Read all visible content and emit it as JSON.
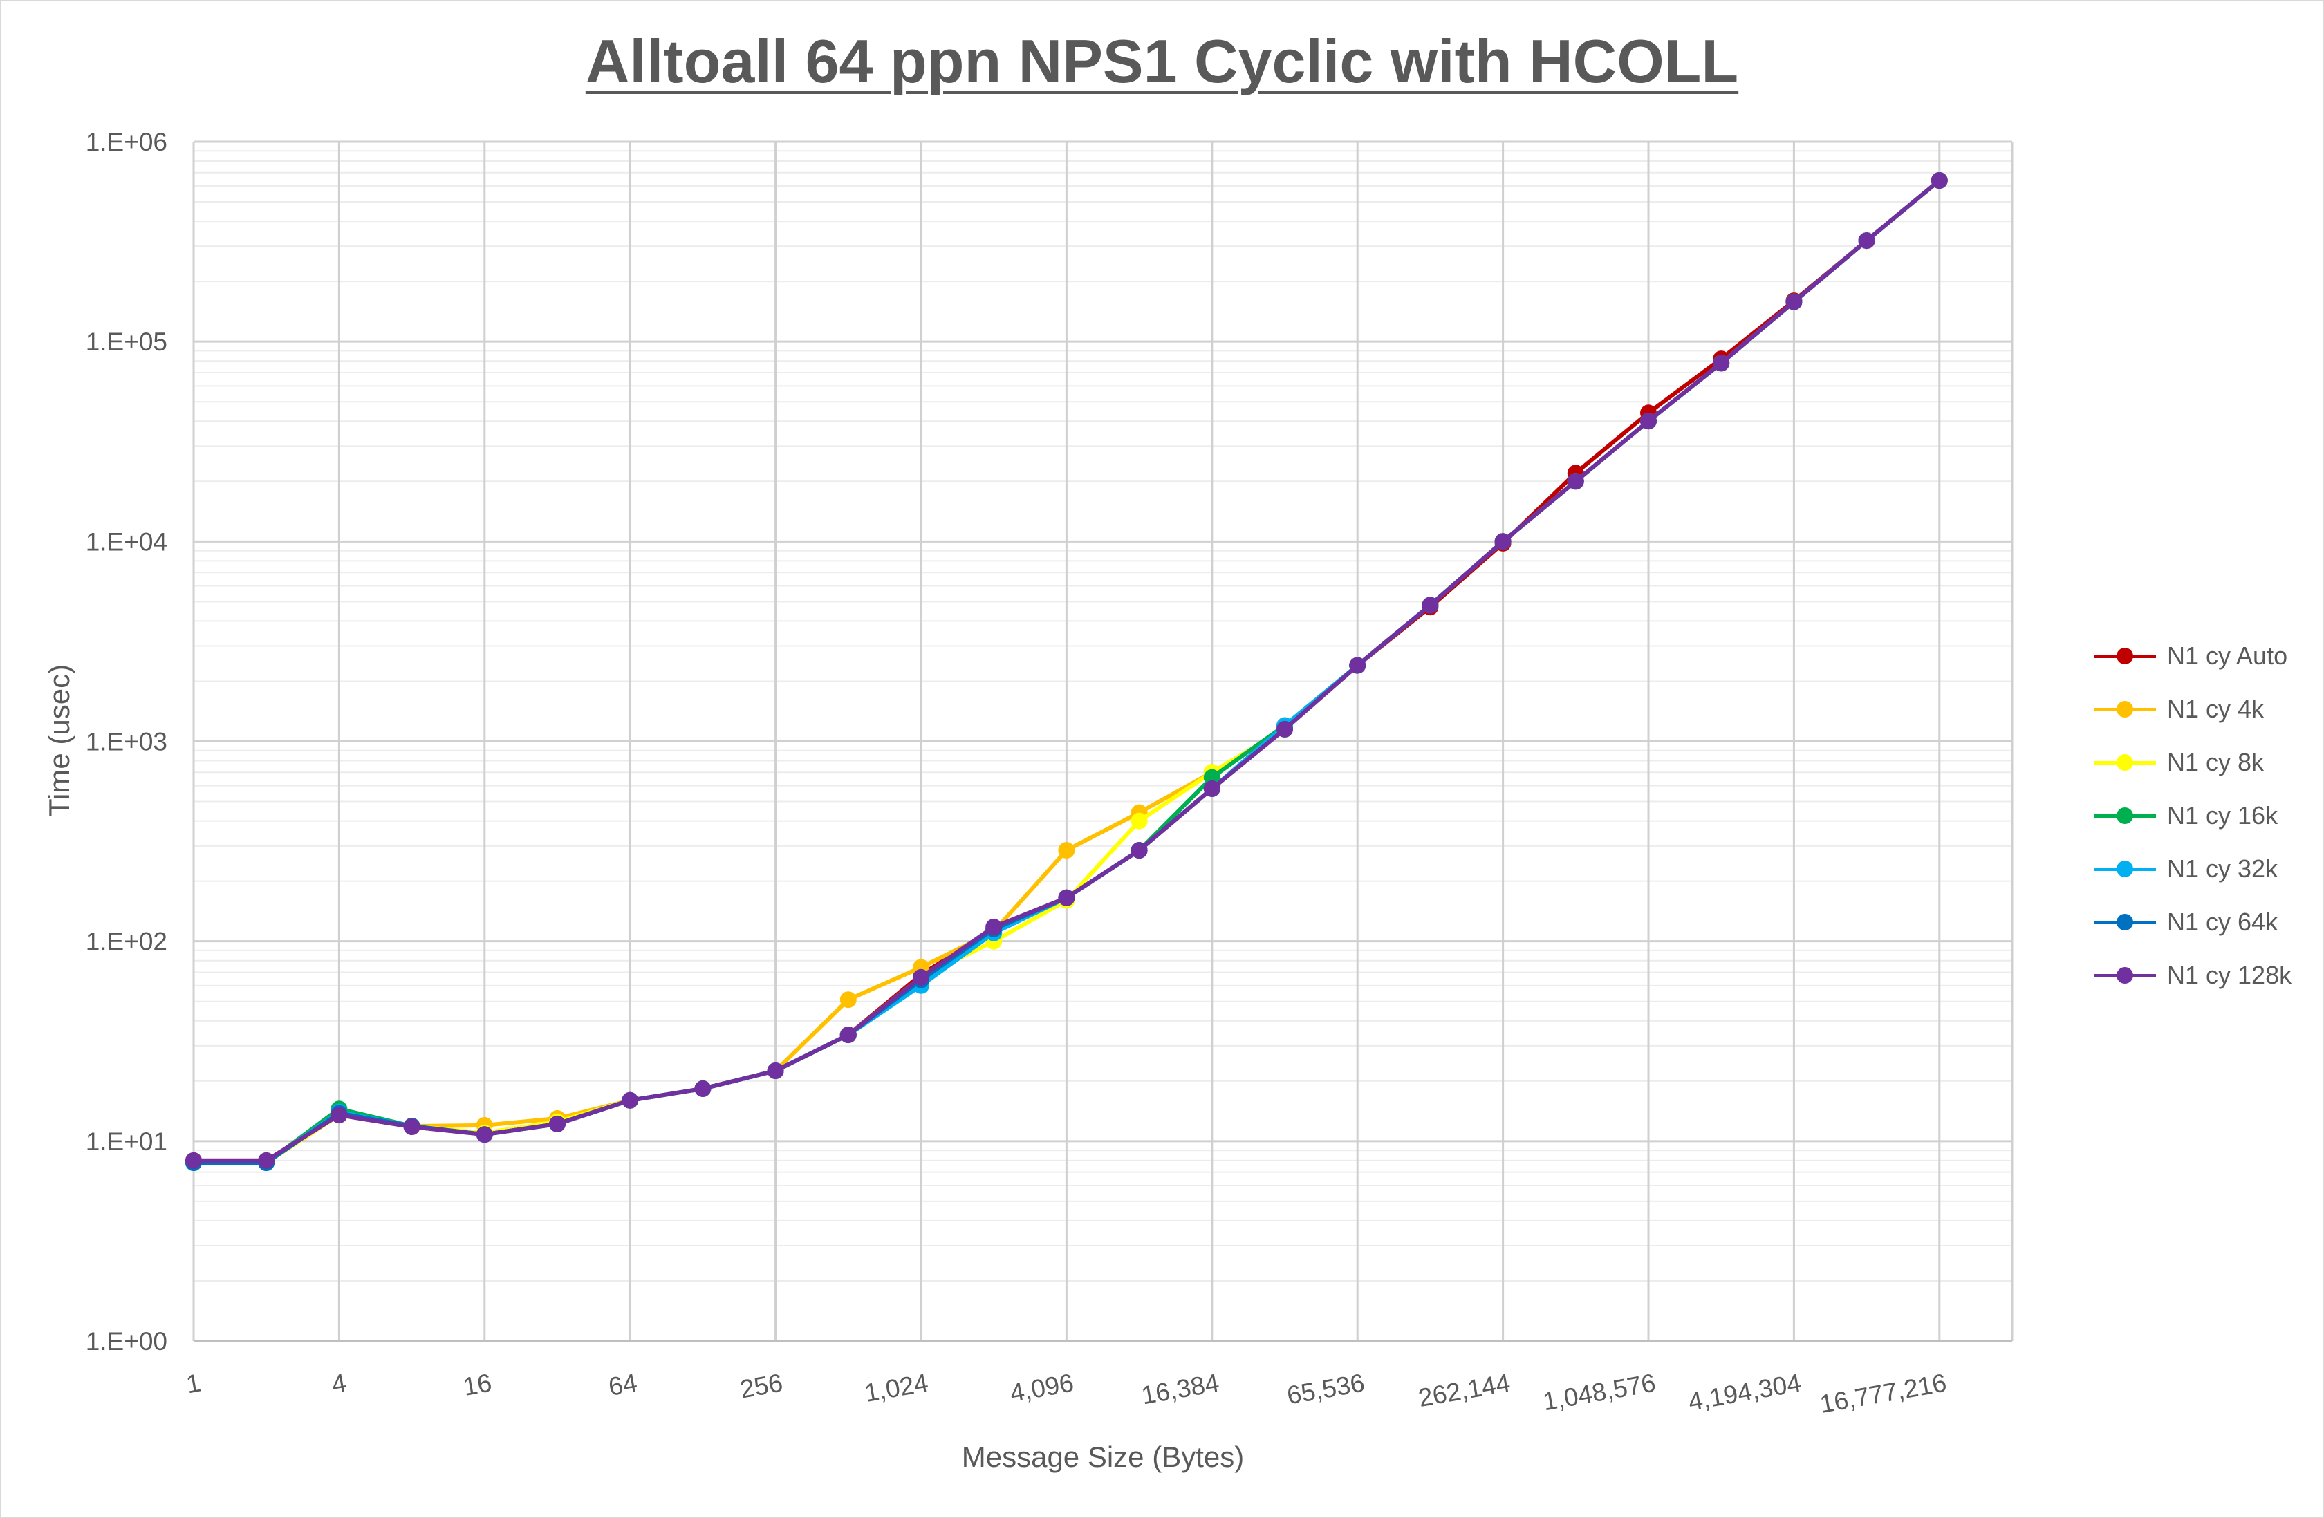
{
  "chart_data": {
    "type": "line",
    "title": "Alltoall 64 ppn NPS1 Cyclic with HCOLL",
    "xlabel": "Message Size (Bytes)",
    "ylabel": "Time (usec)",
    "x_scale": "log2",
    "y_scale": "log10",
    "xlim": [
      1,
      33554432
    ],
    "ylim": [
      1,
      1000000
    ],
    "x_tick_labels": [
      "1",
      "4",
      "16",
      "64",
      "256",
      "1,024",
      "4,096",
      "16,384",
      "65,536",
      "262,144",
      "1,048,576",
      "4,194,304",
      "16,777,216"
    ],
    "y_tick_labels": [
      "1.E+00",
      "1.E+01",
      "1.E+02",
      "1.E+03",
      "1.E+04",
      "1.E+05",
      "1.E+06"
    ],
    "grid": true,
    "legend_position": "right",
    "x": [
      1,
      2,
      4,
      8,
      16,
      32,
      64,
      128,
      256,
      512,
      1024,
      2048,
      4096,
      8192,
      16384,
      32768,
      65536,
      131072,
      262144,
      524288,
      1048576,
      2097152,
      4194304,
      8388608,
      16777216,
      33554432
    ],
    "series": [
      {
        "name": "N1 cy Auto",
        "color": "#c00000",
        "values": [
          8.0,
          8.0,
          13.5,
          11.8,
          10.8,
          12.2,
          16.0,
          18.3,
          22.5,
          34.0,
          68.0,
          115.0,
          165.0,
          285.0,
          580.0,
          1150.0,
          2400.0,
          4700.0,
          9800.0,
          22000.0,
          44000.0,
          82000.0,
          160000.0,
          320000.0,
          640000.0,
          null
        ]
      },
      {
        "name": "N1 cy 4k",
        "color": "#ffc000",
        "values": [
          7.8,
          7.8,
          13.5,
          11.9,
          12.0,
          13.0,
          16.0,
          18.3,
          22.5,
          51.0,
          74.0,
          112.0,
          285.0,
          440.0,
          700.0,
          1150.0,
          2400.0,
          4800.0,
          10000.0,
          20000.0,
          40000.0,
          78000.0,
          158000.0,
          320000.0,
          640000.0,
          null
        ]
      },
      {
        "name": "N1 cy 8k",
        "color": "#ffff00",
        "values": [
          7.8,
          7.8,
          13.5,
          11.9,
          11.0,
          12.5,
          16.0,
          18.3,
          22.5,
          34.0,
          66.0,
          100.0,
          160.0,
          400.0,
          700.0,
          1150.0,
          2400.0,
          4800.0,
          10000.0,
          20000.0,
          40000.0,
          78000.0,
          158000.0,
          320000.0,
          640000.0,
          null
        ]
      },
      {
        "name": "N1 cy 16k",
        "color": "#00b050",
        "values": [
          7.8,
          7.8,
          14.5,
          11.9,
          10.8,
          12.2,
          16.0,
          18.3,
          22.5,
          34.0,
          62.0,
          110.0,
          165.0,
          285.0,
          660.0,
          1200.0,
          2400.0,
          4800.0,
          10000.0,
          20000.0,
          40000.0,
          78000.0,
          158000.0,
          320000.0,
          640000.0,
          null
        ]
      },
      {
        "name": "N1 cy 32k",
        "color": "#00b0f0",
        "values": [
          7.8,
          7.8,
          14.0,
          11.9,
          10.8,
          12.2,
          16.0,
          18.3,
          22.5,
          34.0,
          60.0,
          110.0,
          165.0,
          285.0,
          580.0,
          1200.0,
          2400.0,
          4800.0,
          10000.0,
          20000.0,
          40000.0,
          78000.0,
          158000.0,
          320000.0,
          640000.0,
          null
        ]
      },
      {
        "name": "N1 cy 64k",
        "color": "#0070c0",
        "values": [
          7.8,
          7.8,
          13.8,
          11.9,
          10.8,
          12.2,
          16.0,
          18.3,
          22.5,
          34.0,
          64.0,
          115.0,
          165.0,
          285.0,
          580.0,
          1150.0,
          2400.0,
          4800.0,
          10000.0,
          20000.0,
          40000.0,
          78000.0,
          158000.0,
          320000.0,
          640000.0,
          null
        ]
      },
      {
        "name": "N1 cy 128k",
        "color": "#7030a0",
        "values": [
          8.0,
          8.0,
          13.5,
          11.8,
          10.8,
          12.2,
          16.0,
          18.3,
          22.5,
          34.0,
          66.0,
          118.0,
          165.0,
          285.0,
          580.0,
          1150.0,
          2400.0,
          4800.0,
          10000.0,
          20000.0,
          40000.0,
          78000.0,
          158000.0,
          320000.0,
          640000.0,
          null
        ]
      }
    ]
  }
}
